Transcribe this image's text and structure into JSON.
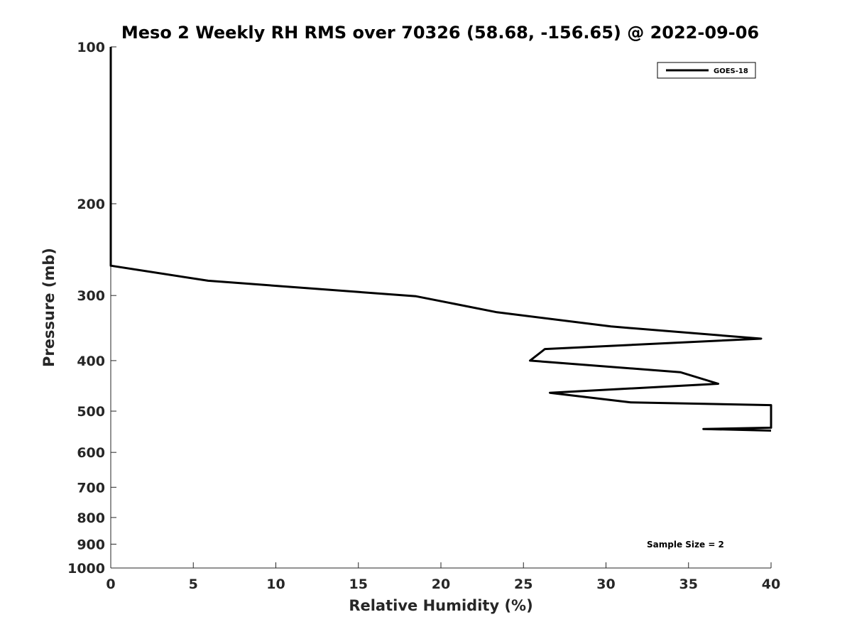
{
  "chart_data": {
    "type": "line",
    "title": "Meso 2 Weekly RH RMS over 70326 (58.68, -156.65) @ 2022-09-06",
    "xlabel": "Relative Humidity (%)",
    "ylabel": "Pressure (mb)",
    "xlim": [
      0,
      40
    ],
    "ylim": [
      100,
      1000
    ],
    "yscale": "log",
    "y_reversed": true,
    "xticks": [
      "0",
      "5",
      "10",
      "15",
      "20",
      "25",
      "30",
      "35",
      "40"
    ],
    "yticks": [
      "100",
      "200",
      "300",
      "400",
      "500",
      "600",
      "700",
      "800",
      "900",
      "1000"
    ],
    "grid": false,
    "legend_position": "top-right",
    "annotation": "Sample Size = 2",
    "series": [
      {
        "name": "GOES-18",
        "color": "#000000",
        "x": [
          0,
          0,
          0,
          0,
          5.9,
          18.5,
          23.4,
          30.3,
          39.4,
          26.3,
          25.4,
          34.5,
          36.8,
          26.6,
          31.5,
          40,
          40,
          35.9,
          40
        ],
        "y": [
          100,
          150,
          200,
          263,
          281,
          301,
          323,
          344,
          363,
          380,
          400,
          421,
          443,
          461,
          481,
          487,
          538,
          541,
          545
        ]
      }
    ]
  }
}
